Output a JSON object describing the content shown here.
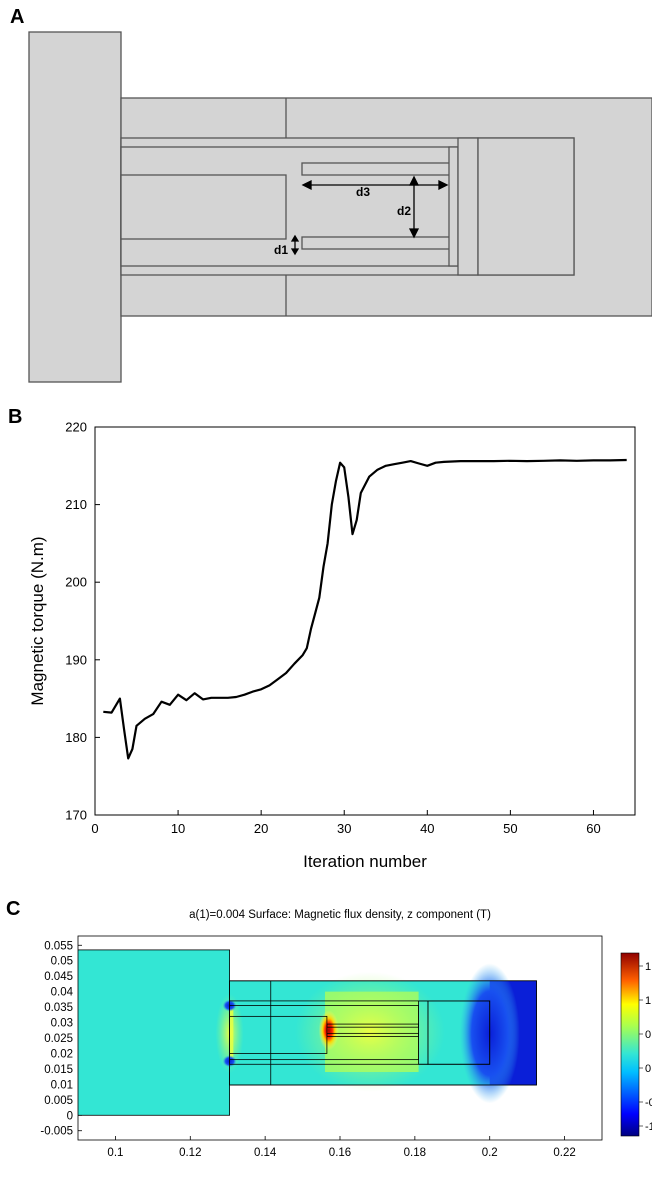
{
  "panels": {
    "a": {
      "label": "A"
    },
    "b": {
      "label": "B"
    },
    "c": {
      "label": "C"
    }
  },
  "geometry_labels": {
    "d1": "d1",
    "d2": "d2",
    "d3": "d3"
  },
  "colors": {
    "geometry_fill": "#d4d4d4",
    "geometry_stroke": "#555555",
    "curve": "#000000",
    "field_background": "#33e6d4",
    "field_low": "#0a1fd8",
    "field_high": "#b00000"
  },
  "chart_data": [
    {
      "type": "line",
      "panel": "B",
      "title": "",
      "xlabel": "Iteration number",
      "ylabel": "Magnetic torque (N.m)",
      "xlim": [
        0,
        65
      ],
      "ylim": [
        170,
        220
      ],
      "xticks": [
        "0",
        "10",
        "20",
        "30",
        "40",
        "50",
        "60"
      ],
      "yticks": [
        "170",
        "180",
        "190",
        "200",
        "210",
        "220"
      ],
      "grid": false,
      "series": [
        {
          "x": [
            1,
            2,
            3,
            3.5,
            4,
            4.5,
            5,
            6,
            7,
            8,
            9,
            10,
            11,
            12,
            13,
            14,
            15,
            16,
            17,
            18,
            19,
            20,
            21,
            22,
            23,
            24,
            25,
            25.5,
            26,
            26.5,
            27,
            27.5,
            28,
            28.5,
            29,
            29.5,
            30,
            30.5,
            31,
            31.5,
            32,
            33,
            34,
            35,
            36,
            37,
            38,
            39,
            40,
            41,
            42,
            44,
            46,
            48,
            50,
            52,
            54,
            56,
            58,
            60,
            62,
            64
          ],
          "y": [
            183.3,
            183.2,
            185,
            181,
            177.3,
            178.5,
            181.5,
            182.4,
            183,
            184.6,
            184.2,
            185.5,
            184.8,
            185.7,
            184.9,
            185.1,
            185.1,
            185.1,
            185.2,
            185.5,
            185.9,
            186.2,
            186.7,
            187.5,
            188.3,
            189.5,
            190.6,
            191.5,
            194,
            196,
            198,
            202,
            205,
            210,
            213,
            215.4,
            214.8,
            211,
            206.2,
            208,
            211.5,
            213.6,
            214.5,
            215,
            215.2,
            215.4,
            215.6,
            215.3,
            215,
            215.4,
            215.5,
            215.6,
            215.6,
            215.6,
            215.65,
            215.6,
            215.65,
            215.7,
            215.65,
            215.7,
            215.7,
            215.75
          ]
        }
      ]
    },
    {
      "type": "heatmap",
      "panel": "C",
      "title": "a(1)=0.004   Surface: Magnetic flux density, z component (T)",
      "xlim": [
        0.09,
        0.23
      ],
      "ylim": [
        -0.008,
        0.058
      ],
      "xticks": [
        "0.1",
        "0.12",
        "0.14",
        "0.16",
        "0.18",
        "0.2",
        "0.22"
      ],
      "yticks": [
        "-0.005",
        "0",
        "0.005",
        "0.01",
        "0.015",
        "0.02",
        "0.025",
        "0.03",
        "0.035",
        "0.04",
        "0.045",
        "0.05",
        "0.055"
      ],
      "colorbar_ticks": [
        "1",
        "1",
        "0",
        "0",
        "-0",
        "-1"
      ]
    }
  ]
}
